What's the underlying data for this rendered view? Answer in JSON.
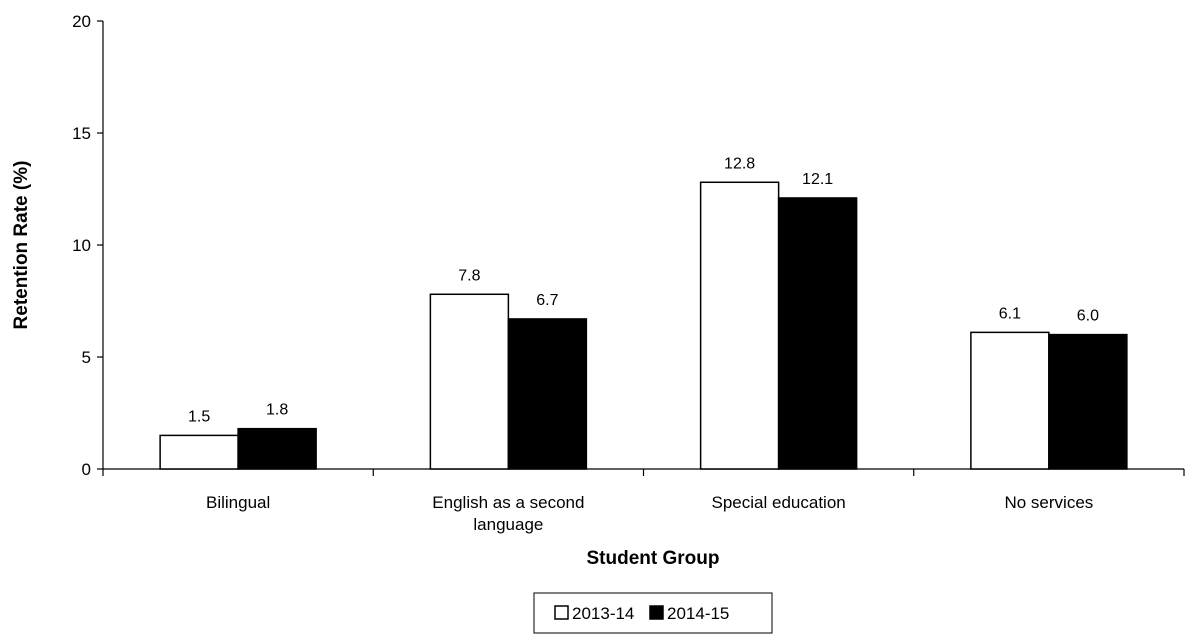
{
  "chart_data": {
    "type": "bar",
    "xlabel": "Student Group",
    "ylabel": "Retention Rate (%)",
    "ylim": [
      0,
      20
    ],
    "yticks": [
      0,
      5,
      10,
      15,
      20
    ],
    "grid": false,
    "legend_position": "bottom",
    "categories": [
      [
        "Bilingual"
      ],
      [
        "English as a second",
        "language"
      ],
      [
        "Special education"
      ],
      [
        "No services"
      ]
    ],
    "series": [
      {
        "name": "2013-14",
        "color": "#ffffff",
        "stroke": "#000000",
        "values": [
          1.5,
          7.8,
          12.8,
          6.1
        ],
        "labels": [
          "1.5",
          "7.8",
          "12.8",
          "6.1"
        ]
      },
      {
        "name": "2014-15",
        "color": "#000000",
        "stroke": "#000000",
        "values": [
          1.8,
          6.7,
          12.1,
          6.0
        ],
        "labels": [
          "1.8",
          "6.7",
          "12.1",
          "6.0"
        ]
      }
    ]
  }
}
